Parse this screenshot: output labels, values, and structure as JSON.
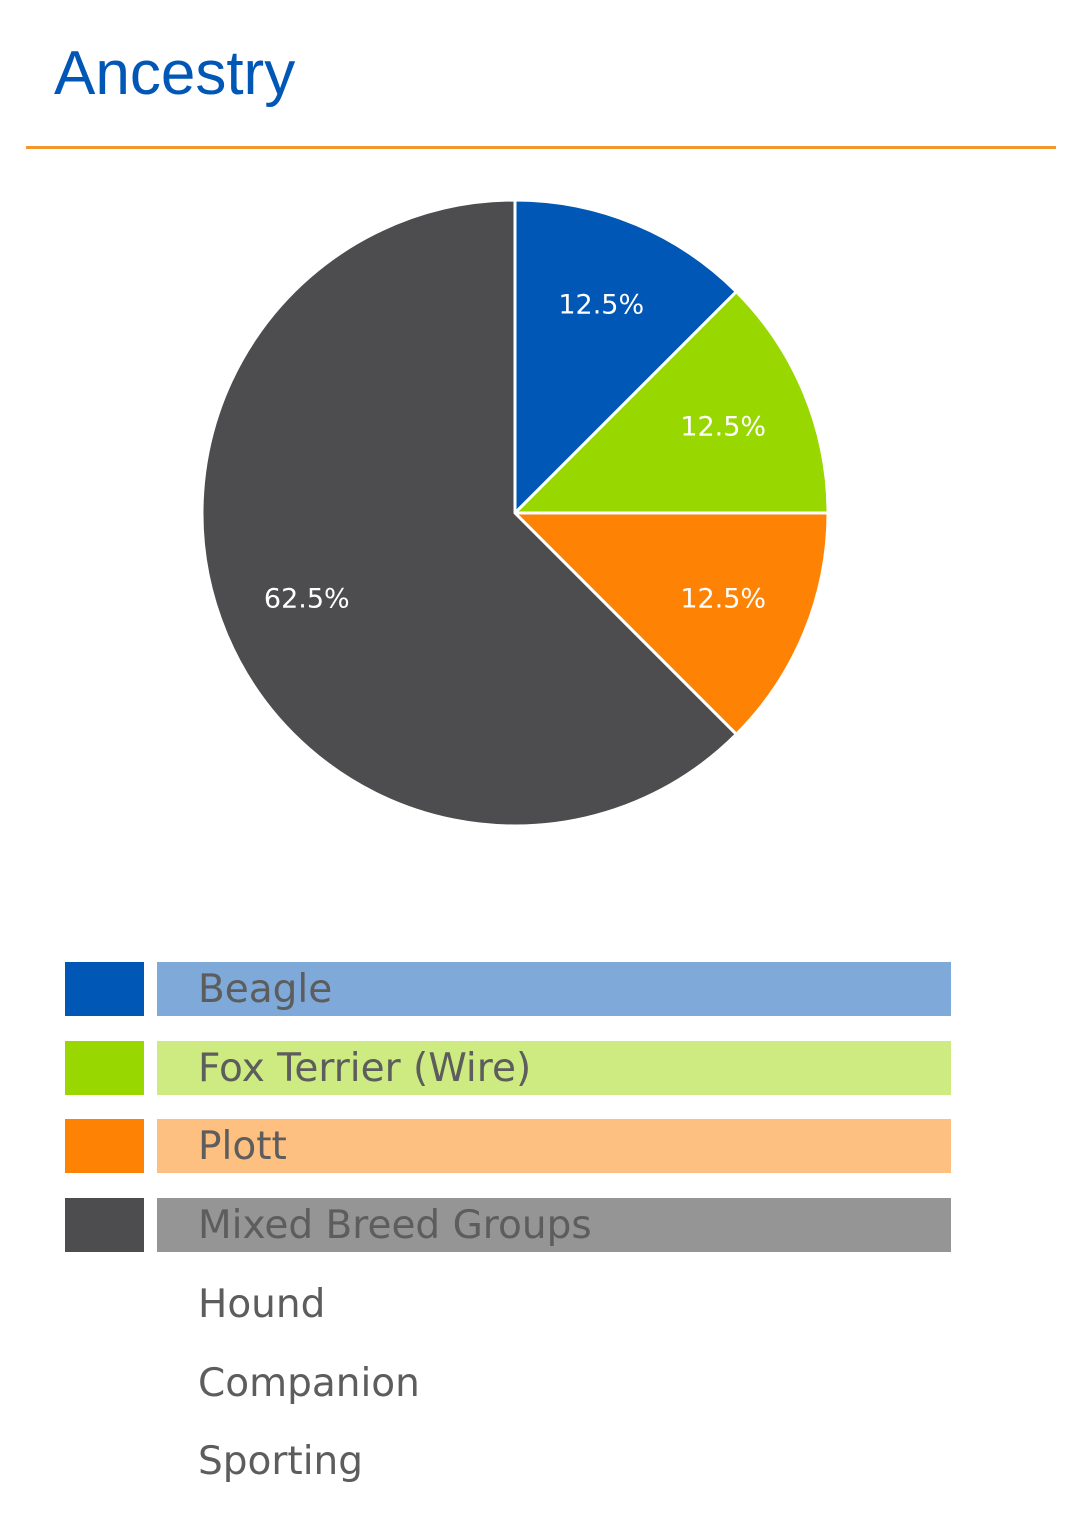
{
  "header": {
    "title": "Ancestry"
  },
  "colors": {
    "title": "#0157b6",
    "divider": "#f2982f",
    "legend_text": "#5d5d5d"
  },
  "chart_data": {
    "type": "pie",
    "title": "",
    "slices": [
      {
        "label": "Beagle",
        "value": 12.5,
        "display": "12.5%",
        "color": "#0157b6",
        "bar_color": "#7ea9d9"
      },
      {
        "label": "Fox Terrier (Wire)",
        "value": 12.5,
        "display": "12.5%",
        "color": "#98d800",
        "bar_color": "#cdeb80"
      },
      {
        "label": "Plott",
        "value": 12.5,
        "display": "12.5%",
        "color": "#fe8203",
        "bar_color": "#fec080"
      },
      {
        "label": "Mixed Breed Groups",
        "value": 62.5,
        "display": "62.5%",
        "color": "#4d4d4f",
        "bar_color": "#959595"
      }
    ],
    "start_angle_deg": 0,
    "direction": "clockwise",
    "legend_placement": "bottom"
  },
  "groups": {
    "items": [
      "Hound",
      "Companion",
      "Sporting"
    ]
  }
}
